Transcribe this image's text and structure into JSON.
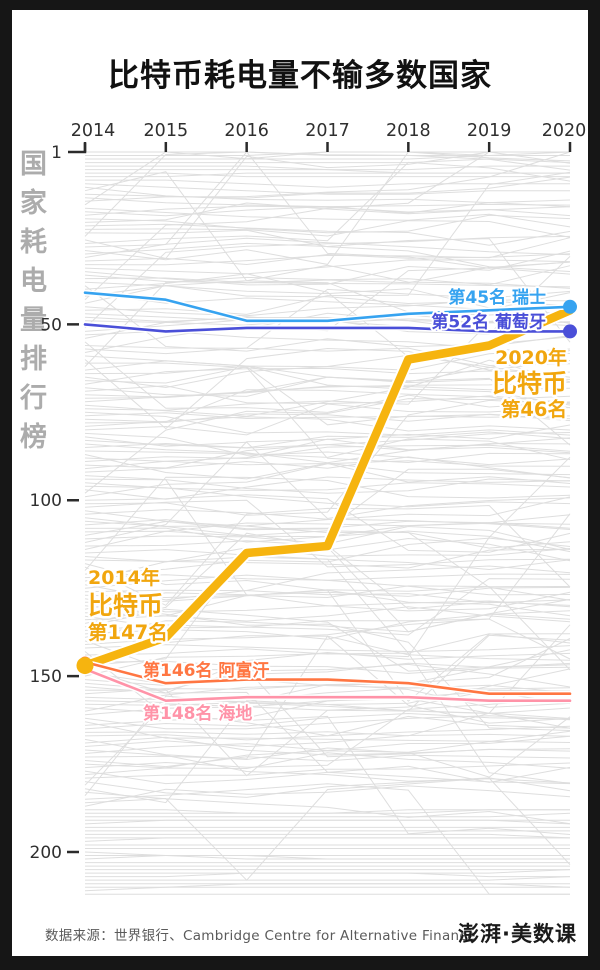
{
  "title": "比特币耗电量不输多数国家",
  "y_axis_title": "国家耗电量排行榜",
  "footer": {
    "source": "数据来源：世界银行、Cambridge Centre for Alternative Finance",
    "logo": "澎湃·美数课"
  },
  "chart_data": {
    "type": "line",
    "subtype": "bump-rank-chart",
    "title": "比特币耗电量不输多数国家",
    "x": [
      2014,
      2015,
      2016,
      2017,
      2018,
      2019,
      2020
    ],
    "xlabel": "",
    "ylabel": "国家耗电量排行榜",
    "y_ticks": [
      1,
      50,
      100,
      150,
      200
    ],
    "ylim": [
      1,
      212
    ],
    "y_inverted": true,
    "grid": false,
    "legend_position": "inline-annotations",
    "background_lines": {
      "count": 210,
      "color": "#dedede",
      "note": "unlabeled gray country ranking lines"
    },
    "series": [
      {
        "name": "比特币",
        "name_en": "Bitcoin",
        "color": "#F6B40F",
        "width": 8.5,
        "ranks": [
          147,
          139,
          115,
          113,
          60,
          56,
          46
        ],
        "start_dot": true,
        "end_dot": false
      },
      {
        "name": "瑞士",
        "name_en": "Switzerland",
        "color": "#36A3F0",
        "width": 2.6,
        "ranks": [
          41,
          43,
          49,
          49,
          47,
          46,
          45
        ],
        "start_dot": false,
        "end_dot": true
      },
      {
        "name": "葡萄牙",
        "name_en": "Portugal",
        "color": "#4A4FD8",
        "width": 2.6,
        "ranks": [
          50,
          52,
          51,
          51,
          51,
          52,
          52
        ],
        "start_dot": false,
        "end_dot": true
      },
      {
        "name": "阿富汗",
        "name_en": "Afghanistan",
        "color": "#FF7642",
        "width": 2.6,
        "ranks": [
          146,
          152,
          151,
          151,
          152,
          155,
          155
        ],
        "start_dot": true,
        "end_dot": false
      },
      {
        "name": "海地",
        "name_en": "Haiti",
        "color": "#FF93A8",
        "width": 2.6,
        "ranks": [
          148,
          157,
          156,
          156,
          156,
          157,
          157
        ],
        "start_dot": false,
        "end_dot": false
      }
    ],
    "annotations": [
      {
        "id": "bitcoin-2014",
        "lines": [
          "2014年",
          "比特币",
          "第147名"
        ],
        "color": "#F1A60E"
      },
      {
        "id": "bitcoin-2020",
        "lines": [
          "2020年",
          "比特币",
          "第46名"
        ],
        "color": "#F1A60E"
      },
      {
        "id": "switzerland",
        "text": "第45名  瑞士",
        "color": "#36A3F0"
      },
      {
        "id": "portugal",
        "text": "第52名  葡萄牙",
        "color": "#4A4FD8"
      },
      {
        "id": "afghanistan",
        "text": "第146名  阿富汗",
        "color": "#FF7642"
      },
      {
        "id": "haiti",
        "text": "第148名  海地",
        "color": "#FF93A8"
      }
    ]
  }
}
